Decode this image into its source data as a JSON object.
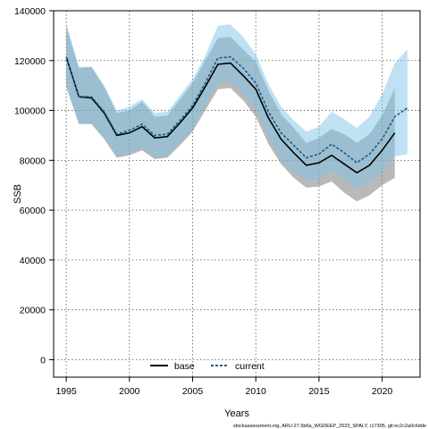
{
  "chart_data": {
    "type": "line",
    "xlabel": "Years",
    "ylabel": "SSB",
    "xlim": [
      1994,
      2023
    ],
    "ylim": [
      -7000,
      140000
    ],
    "x_ticks": [
      1995,
      2000,
      2005,
      2010,
      2015,
      2020
    ],
    "y_ticks": [
      0,
      20000,
      40000,
      60000,
      80000,
      100000,
      120000,
      140000
    ],
    "grid": true,
    "legend_position": "bottom",
    "series": [
      {
        "name": "base",
        "color": "#000000",
        "line_style": "solid",
        "band_color": "#808080",
        "x": [
          1995,
          1996,
          1997,
          1998,
          1999,
          2000,
          2001,
          2002,
          2003,
          2004,
          2005,
          2006,
          2007,
          2008,
          2009,
          2010,
          2011,
          2012,
          2013,
          2014,
          2015,
          2016,
          2017,
          2018,
          2019,
          2020,
          2021
        ],
        "values": [
          121500,
          105500,
          105000,
          99000,
          90000,
          91000,
          93500,
          89000,
          89500,
          95000,
          101000,
          109500,
          118500,
          119000,
          114000,
          108500,
          97000,
          88500,
          83000,
          78000,
          79000,
          82000,
          78500,
          75000,
          78000,
          84000,
          91000
        ],
        "lower": [
          109500,
          94500,
          94500,
          88500,
          81000,
          82000,
          84000,
          80500,
          81000,
          86000,
          91500,
          100000,
          108500,
          109000,
          104000,
          97500,
          86500,
          78500,
          73000,
          69000,
          69500,
          71500,
          67000,
          63500,
          66000,
          70000,
          73000
        ],
        "upper": [
          133500,
          117000,
          117500,
          109500,
          99000,
          100000,
          103500,
          97500,
          98000,
          104500,
          111000,
          120000,
          129000,
          129500,
          124500,
          119500,
          108000,
          98500,
          93000,
          87000,
          89000,
          92500,
          90500,
          87000,
          90500,
          98000,
          109000
        ]
      },
      {
        "name": "current",
        "color": "#1a5a8a",
        "line_style": "dashed",
        "band_color": "#7ec3e8",
        "x": [
          1995,
          1996,
          1997,
          1998,
          1999,
          2000,
          2001,
          2002,
          2003,
          2004,
          2005,
          2006,
          2007,
          2008,
          2009,
          2010,
          2011,
          2012,
          2013,
          2014,
          2015,
          2016,
          2017,
          2018,
          2019,
          2020,
          2021,
          2022
        ],
        "values": [
          121500,
          105500,
          105500,
          99500,
          90500,
          92000,
          94500,
          90000,
          90500,
          96000,
          102000,
          111000,
          121000,
          121500,
          117000,
          111000,
          99500,
          91000,
          86000,
          81000,
          82500,
          86500,
          83000,
          79000,
          82500,
          88500,
          97500,
          101000
        ],
        "lower": [
          109500,
          95000,
          95000,
          89000,
          81500,
          83000,
          85000,
          81000,
          81500,
          87000,
          92500,
          101500,
          111000,
          111500,
          107000,
          100500,
          89000,
          80500,
          75500,
          71500,
          72500,
          75500,
          72500,
          68500,
          71500,
          75500,
          81500,
          82500
        ],
        "upper": [
          135000,
          117500,
          117500,
          110000,
          100000,
          101500,
          104500,
          99000,
          99500,
          106000,
          112500,
          122000,
          134000,
          134500,
          129500,
          122500,
          110500,
          101500,
          96000,
          91500,
          93500,
          99500,
          96500,
          93000,
          97500,
          106500,
          119000,
          124500
        ]
      }
    ],
    "footnote": "stockassessment.org, ARU-27.5b6a_WGDEEP_2023_SPALY, r17305, git:ec2c2a0c6dde"
  }
}
